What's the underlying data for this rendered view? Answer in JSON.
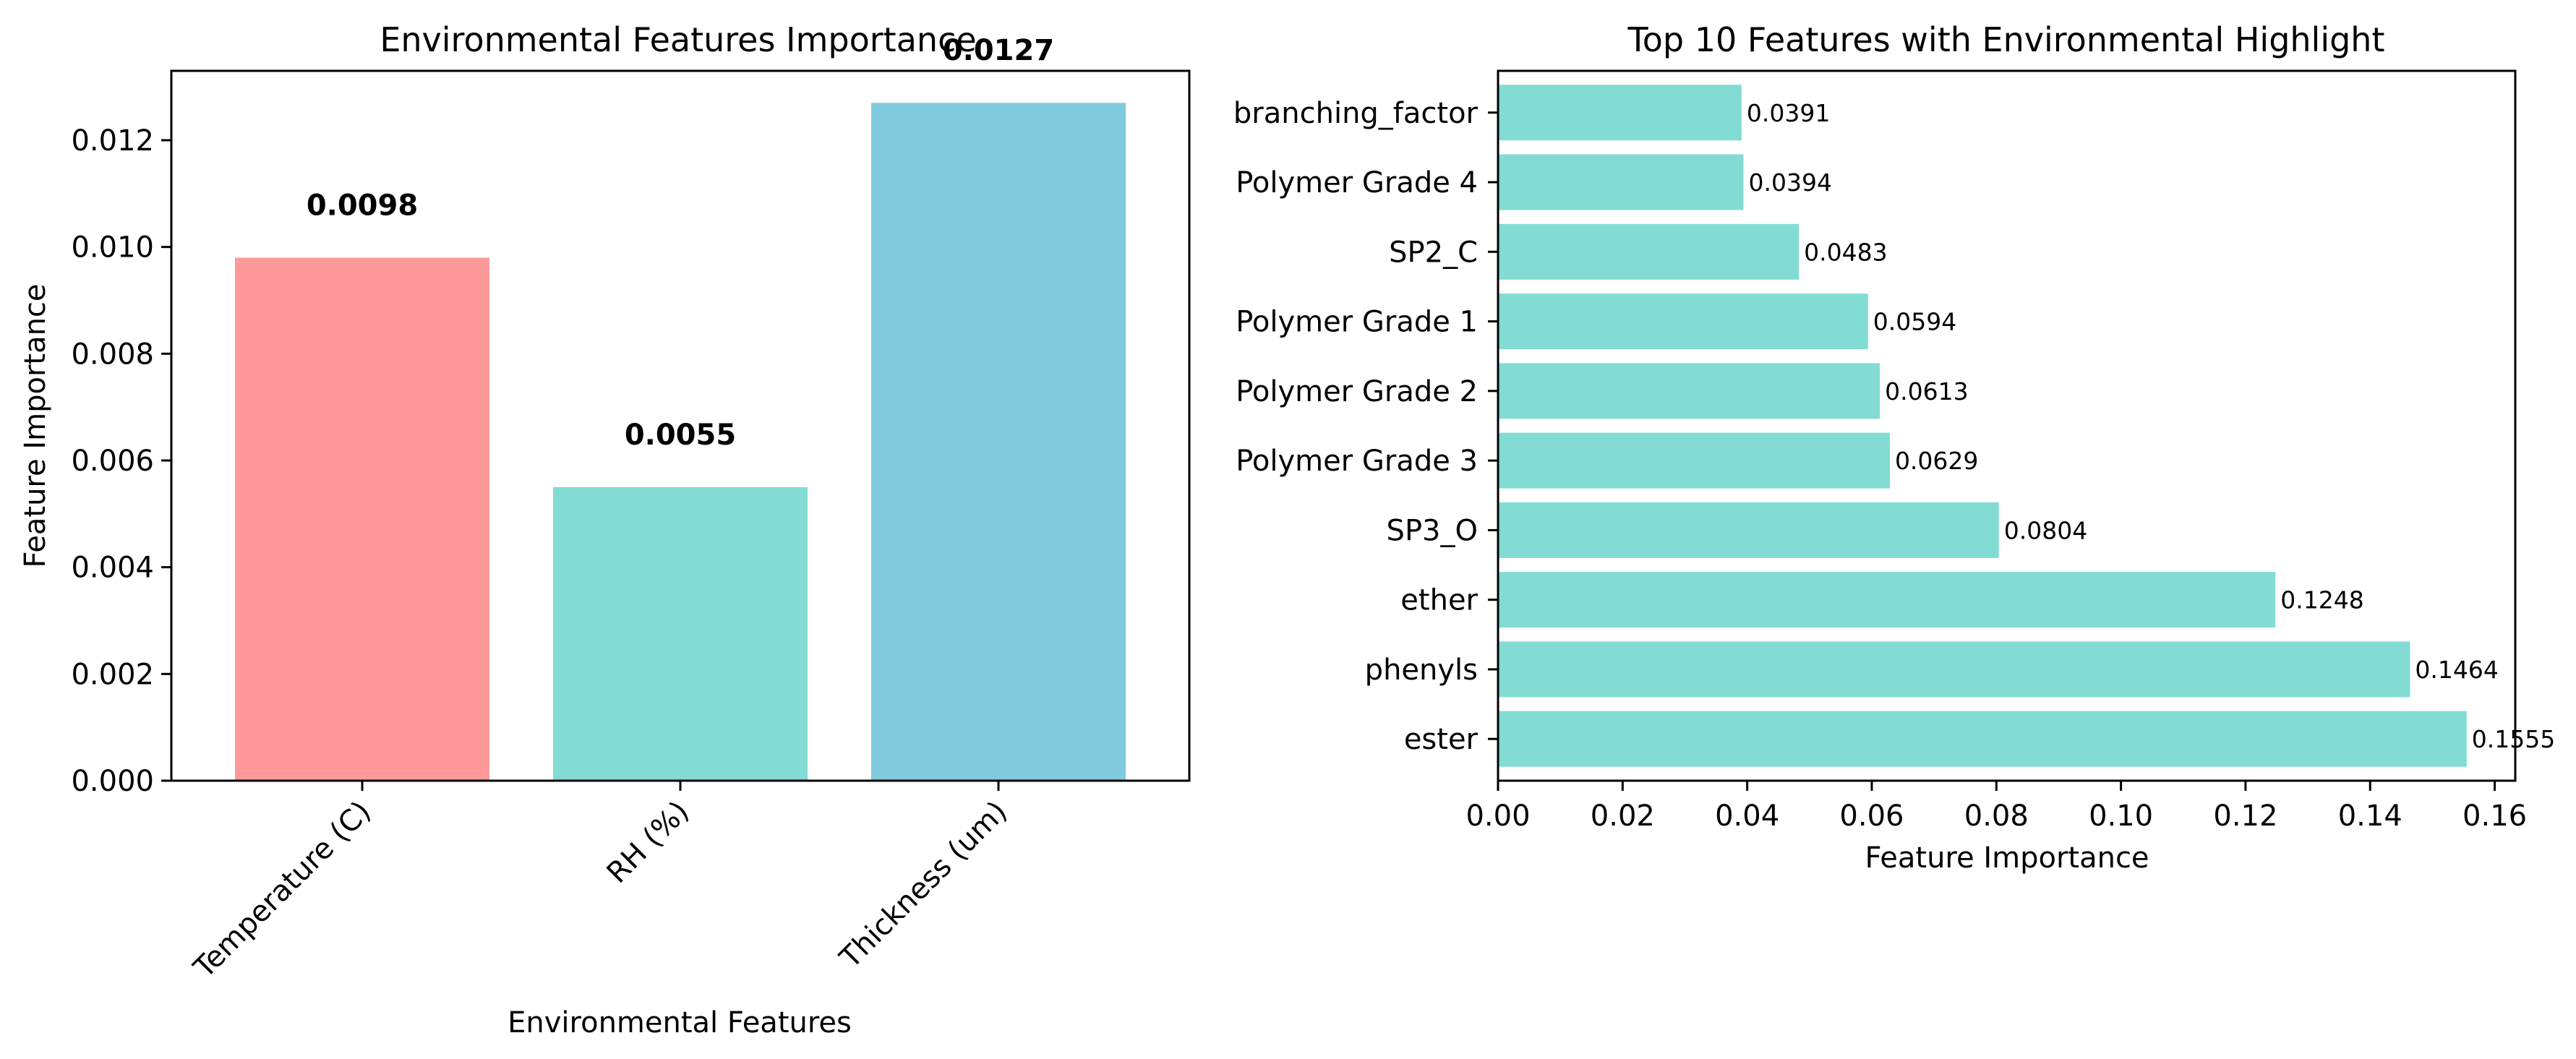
{
  "chart_data": [
    {
      "type": "bar",
      "title": "Environmental Features Importance",
      "xlabel": "Environmental Features",
      "ylabel": "Feature Importance",
      "categories": [
        "Temperature (C)",
        "RH (%)",
        "Thickness (um)"
      ],
      "values": [
        0.0098,
        0.0055,
        0.0127
      ],
      "value_labels": [
        "0.0098",
        "0.0055",
        "0.0127"
      ],
      "colors": [
        "#ff9999",
        "#82dcd4",
        "#80cbdd"
      ],
      "ylim": [
        0,
        0.0133
      ],
      "yticks": [
        0.0,
        0.002,
        0.004,
        0.006,
        0.008,
        0.01,
        0.012
      ],
      "ytick_labels": [
        "0.000",
        "0.002",
        "0.004",
        "0.006",
        "0.008",
        "0.010",
        "0.012"
      ],
      "grid": false
    },
    {
      "type": "bar",
      "orientation": "horizontal",
      "title": "Top 10 Features with Environmental Highlight",
      "xlabel": "Feature Importance",
      "ylabel": "",
      "categories": [
        "ester",
        "phenyls",
        "ether",
        "SP3_O",
        "Polymer Grade 3",
        "Polymer Grade 2",
        "Polymer Grade 1",
        "SP2_C",
        "Polymer Grade 4",
        "branching_factor"
      ],
      "values": [
        0.1555,
        0.1464,
        0.1248,
        0.0804,
        0.0629,
        0.0613,
        0.0594,
        0.0483,
        0.0394,
        0.0391
      ],
      "value_labels": [
        "0.1555",
        "0.1464",
        "0.1248",
        "0.0804",
        "0.0629",
        "0.0613",
        "0.0594",
        "0.0483",
        "0.0394",
        "0.0391"
      ],
      "color": "#82dcd4",
      "xlim": [
        0,
        0.1633
      ],
      "xticks": [
        0.0,
        0.02,
        0.04,
        0.06,
        0.08,
        0.1,
        0.12,
        0.14,
        0.16
      ],
      "xtick_labels": [
        "0.00",
        "0.02",
        "0.04",
        "0.06",
        "0.08",
        "0.10",
        "0.12",
        "0.14",
        "0.16"
      ],
      "grid": false
    }
  ]
}
